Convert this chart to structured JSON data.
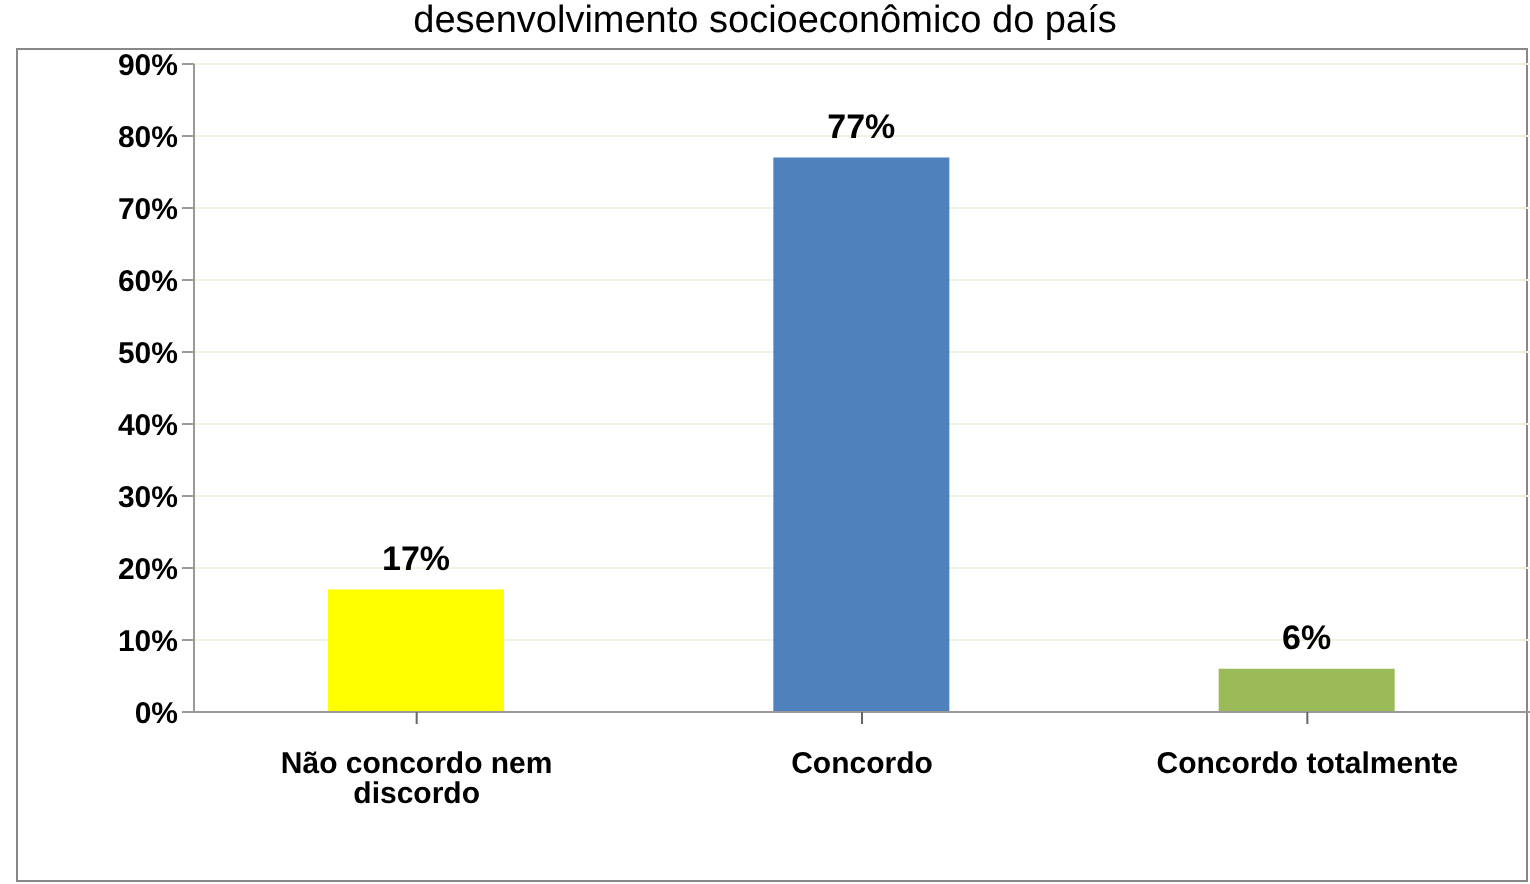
{
  "chart_data": {
    "type": "bar",
    "title": "desenvolvimento socioeconômico do país",
    "categories": [
      "Não concordo nem discordo",
      "Concordo",
      "Concordo totalmente"
    ],
    "values": [
      17,
      77,
      6
    ],
    "colors": [
      "#ffff00",
      "#4f81bd",
      "#9bbb59"
    ],
    "value_labels": [
      "17%",
      "77%",
      "6%"
    ],
    "ylim": [
      0,
      90
    ],
    "yticks": [
      {
        "value": 0,
        "label": "0%"
      },
      {
        "value": 10,
        "label": "10%"
      },
      {
        "value": 20,
        "label": "20%"
      },
      {
        "value": 30,
        "label": "30%"
      },
      {
        "value": 40,
        "label": "40%"
      },
      {
        "value": 50,
        "label": "50%"
      },
      {
        "value": 60,
        "label": "60%"
      },
      {
        "value": 70,
        "label": "70%"
      },
      {
        "value": 80,
        "label": "80%"
      },
      {
        "value": 90,
        "label": "90%"
      }
    ],
    "grid": "y"
  }
}
